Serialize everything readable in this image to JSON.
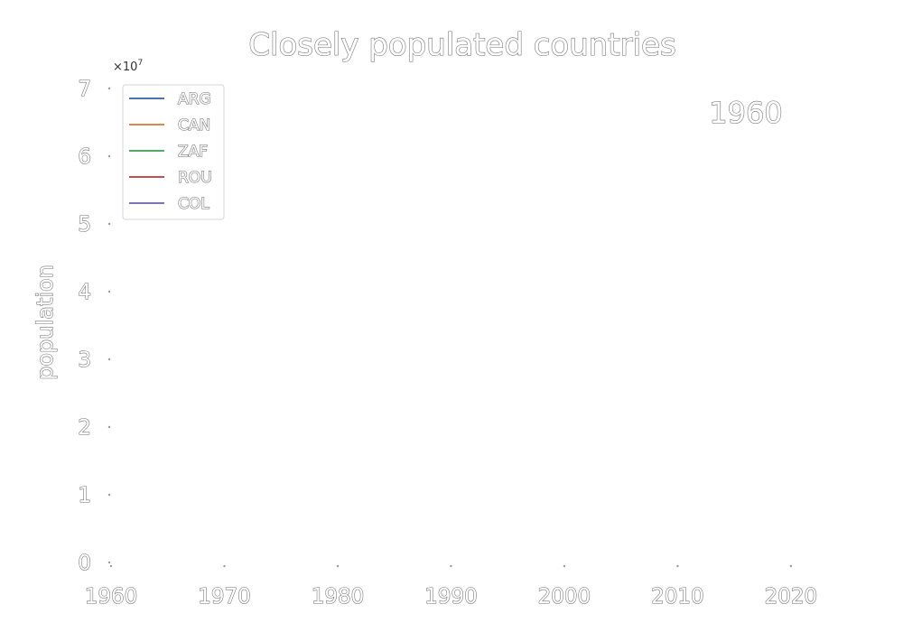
{
  "chart_data": {
    "type": "line",
    "title": "Closely populated countries",
    "xlabel": "",
    "ylabel": "population",
    "x_ticks": [
      "1960",
      "1970",
      "1980",
      "1990",
      "2000",
      "2010",
      "2020"
    ],
    "y_ticks": [
      "0",
      "1",
      "2",
      "3",
      "4",
      "5",
      "6",
      "7"
    ],
    "y_offset_text": "×10",
    "y_offset_exponent": "7",
    "xlim": [
      1960,
      2022
    ],
    "ylim": [
      0,
      7
    ],
    "current_year_label": "1960",
    "legend_position": "upper-left",
    "grid": false,
    "series": [
      {
        "name": "ARG",
        "color": "#4c72b0",
        "x": [],
        "y": []
      },
      {
        "name": "CAN",
        "color": "#dd8452",
        "x": [],
        "y": []
      },
      {
        "name": "ZAF",
        "color": "#55a868",
        "x": [],
        "y": []
      },
      {
        "name": "ROU",
        "color": "#c44e52",
        "x": [],
        "y": []
      },
      {
        "name": "COL",
        "color": "#8172b3",
        "x": [],
        "y": []
      }
    ]
  }
}
